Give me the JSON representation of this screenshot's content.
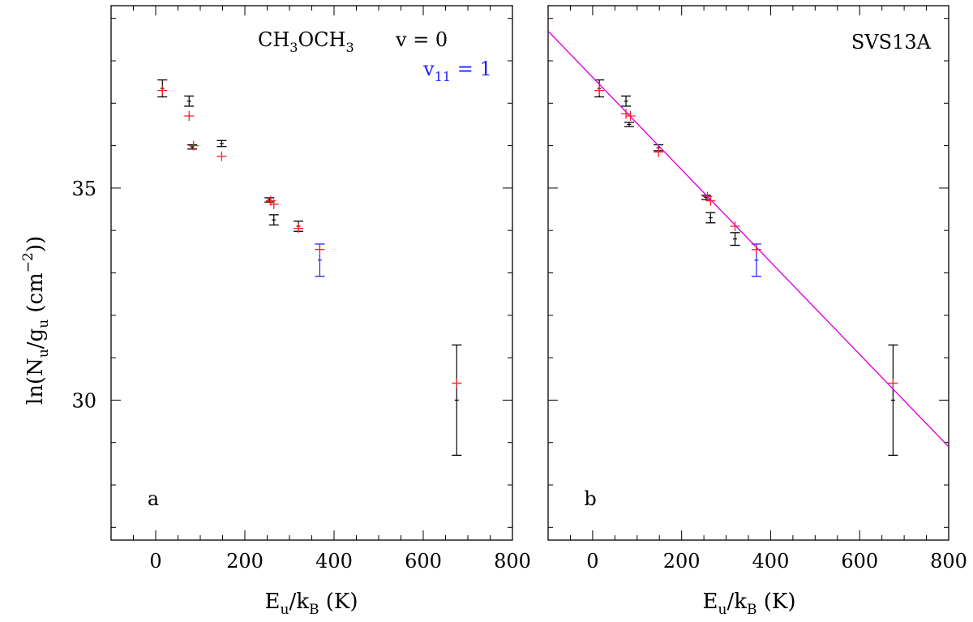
{
  "colors": {
    "observed": "#000000",
    "model": "#ff2020",
    "vibrational": "#2020ff",
    "fit_line": "#e000e0"
  },
  "ylabel_parts": {
    "a": "ln(N",
    "b": "u",
    "c": "/g",
    "d": "u",
    "e": " (cm",
    "f": "−2",
    "g": "))"
  },
  "xlabel_parts": {
    "a": "E",
    "b": "u",
    "c": "/k",
    "d": "B",
    "e": " (K)"
  },
  "legend": {
    "molecule_a": "CH",
    "molecule_b": "3",
    "molecule_c": "OCH",
    "molecule_d": "3",
    "state_ground": "v = 0",
    "state_vib_a": "v",
    "state_vib_b": "11",
    "state_vib_c": " = 1"
  },
  "source_name": "SVS13A",
  "chart_data": [
    {
      "type": "scatter",
      "panel": "a",
      "xlim": [
        -100,
        800
      ],
      "ylim": [
        26.7,
        39.3
      ],
      "x_ticks": [
        0,
        200,
        400,
        600,
        800
      ],
      "y_ticks": [
        30,
        35
      ],
      "xlabel": "Eu/kB (K)",
      "ylabel": "ln(Nu/gu (cm−2))",
      "series": [
        {
          "name": "v = 0 (observed)",
          "points": [
            {
              "x": 15,
              "y": 37.35,
              "err": 0.2
            },
            {
              "x": 75,
              "y": 37.05,
              "err": 0.12
            },
            {
              "x": 82,
              "y": 35.97,
              "err": 0.05
            },
            {
              "x": 148,
              "y": 36.05,
              "err": 0.07
            },
            {
              "x": 255,
              "y": 34.72,
              "err": 0.05
            },
            {
              "x": 265,
              "y": 34.25,
              "err": 0.12
            },
            {
              "x": 320,
              "y": 34.1,
              "err": 0.12
            },
            {
              "x": 675,
              "y": 30.0,
              "err": 1.3
            }
          ]
        },
        {
          "name": "v11 = 1 (observed)",
          "points": [
            {
              "x": 368,
              "y": 33.3,
              "err": 0.38
            }
          ]
        },
        {
          "name": "model",
          "points": [
            {
              "x": 15,
              "y": 37.3
            },
            {
              "x": 75,
              "y": 36.7
            },
            {
              "x": 85,
              "y": 36.0
            },
            {
              "x": 148,
              "y": 35.75
            },
            {
              "x": 258,
              "y": 34.7
            },
            {
              "x": 265,
              "y": 34.62
            },
            {
              "x": 320,
              "y": 34.05
            },
            {
              "x": 368,
              "y": 33.55
            },
            {
              "x": 675,
              "y": 30.4
            }
          ]
        }
      ],
      "annotation": "a"
    },
    {
      "type": "scatter",
      "panel": "b",
      "xlim": [
        -100,
        800
      ],
      "ylim": [
        26.7,
        39.3
      ],
      "x_ticks": [
        0,
        200,
        400,
        600,
        800
      ],
      "y_ticks": [
        30,
        35
      ],
      "xlabel": "Eu/kB (K)",
      "series": [
        {
          "name": "v = 0 (observed)",
          "points": [
            {
              "x": 15,
              "y": 37.35,
              "err": 0.2
            },
            {
              "x": 75,
              "y": 37.05,
              "err": 0.12
            },
            {
              "x": 82,
              "y": 36.5,
              "err": 0.05
            },
            {
              "x": 148,
              "y": 35.95,
              "err": 0.07
            },
            {
              "x": 255,
              "y": 34.78,
              "err": 0.05
            },
            {
              "x": 265,
              "y": 34.3,
              "err": 0.12
            },
            {
              "x": 320,
              "y": 33.8,
              "err": 0.15
            },
            {
              "x": 675,
              "y": 30.0,
              "err": 1.3
            }
          ]
        },
        {
          "name": "v11 = 1 (observed)",
          "points": [
            {
              "x": 368,
              "y": 33.3,
              "err": 0.38
            }
          ]
        },
        {
          "name": "model",
          "points": [
            {
              "x": 15,
              "y": 37.3
            },
            {
              "x": 75,
              "y": 36.75
            },
            {
              "x": 85,
              "y": 36.7
            },
            {
              "x": 148,
              "y": 35.85
            },
            {
              "x": 258,
              "y": 34.8
            },
            {
              "x": 265,
              "y": 34.7
            },
            {
              "x": 320,
              "y": 34.1
            },
            {
              "x": 368,
              "y": 33.55
            },
            {
              "x": 675,
              "y": 30.4
            }
          ]
        },
        {
          "name": "fit",
          "type": "line",
          "points": [
            {
              "x": -100,
              "y": 38.7
            },
            {
              "x": 800,
              "y": 28.9
            }
          ]
        }
      ],
      "annotation": "b"
    }
  ]
}
